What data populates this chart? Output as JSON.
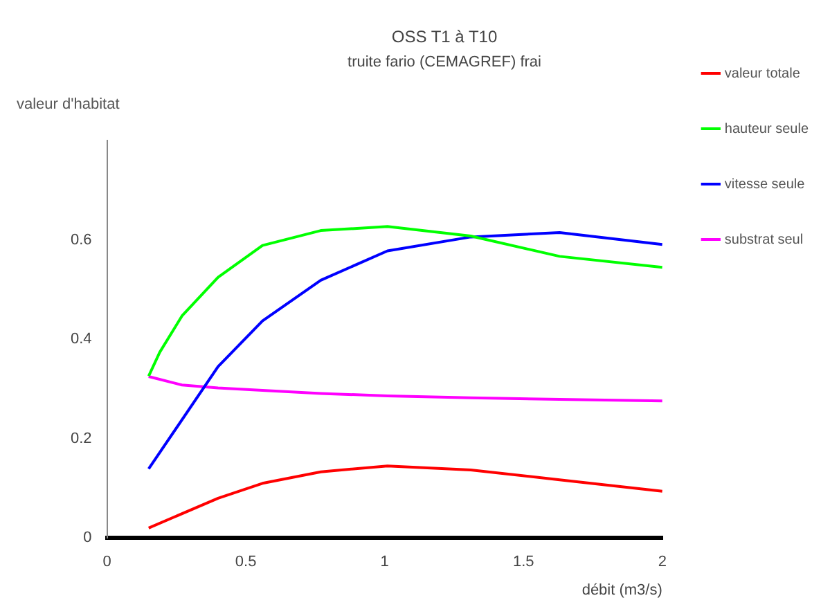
{
  "chart_data": {
    "type": "line",
    "title": "OSS T1 à T10",
    "subtitle": "truite fario (CEMAGREF) frai",
    "xlabel": "débit (m3/s)",
    "ylabel": "valeur d'habitat",
    "xlim": [
      0,
      2
    ],
    "xticks": [
      0,
      0.5,
      1,
      1.5,
      2
    ],
    "ylim": [
      0,
      0.8
    ],
    "yticks": [
      0,
      0.2,
      0.4,
      0.6
    ],
    "grid": false,
    "legend": "right",
    "marker": "none",
    "line_style": "solid",
    "series": [
      {
        "name": "valeur totale",
        "color": "#ff0000",
        "x": [
          0.15,
          0.4,
          0.56,
          0.77,
          1.01,
          1.31,
          1.63,
          2.0
        ],
        "values": [
          0.02,
          0.08,
          0.11,
          0.133,
          0.145,
          0.137,
          0.117,
          0.094
        ]
      },
      {
        "name": "hauteur seule",
        "color": "#00ff00",
        "x": [
          0.15,
          0.19,
          0.27,
          0.4,
          0.56,
          0.77,
          1.01,
          1.31,
          1.63,
          2.0
        ],
        "values": [
          0.326,
          0.374,
          0.447,
          0.525,
          0.589,
          0.619,
          0.627,
          0.608,
          0.567,
          0.545
        ]
      },
      {
        "name": "vitesse seule",
        "color": "#0000ff",
        "x": [
          0.15,
          0.4,
          0.56,
          0.77,
          1.01,
          1.31,
          1.63,
          2.0
        ],
        "values": [
          0.139,
          0.345,
          0.437,
          0.519,
          0.578,
          0.606,
          0.615,
          0.591
        ]
      },
      {
        "name": "substrat seul",
        "color": "#ff00ff",
        "x": [
          0.15,
          0.27,
          0.4,
          0.56,
          0.77,
          1.01,
          1.31,
          1.63,
          2.0
        ],
        "values": [
          0.325,
          0.308,
          0.302,
          0.297,
          0.291,
          0.286,
          0.282,
          0.279,
          0.276
        ]
      }
    ]
  }
}
